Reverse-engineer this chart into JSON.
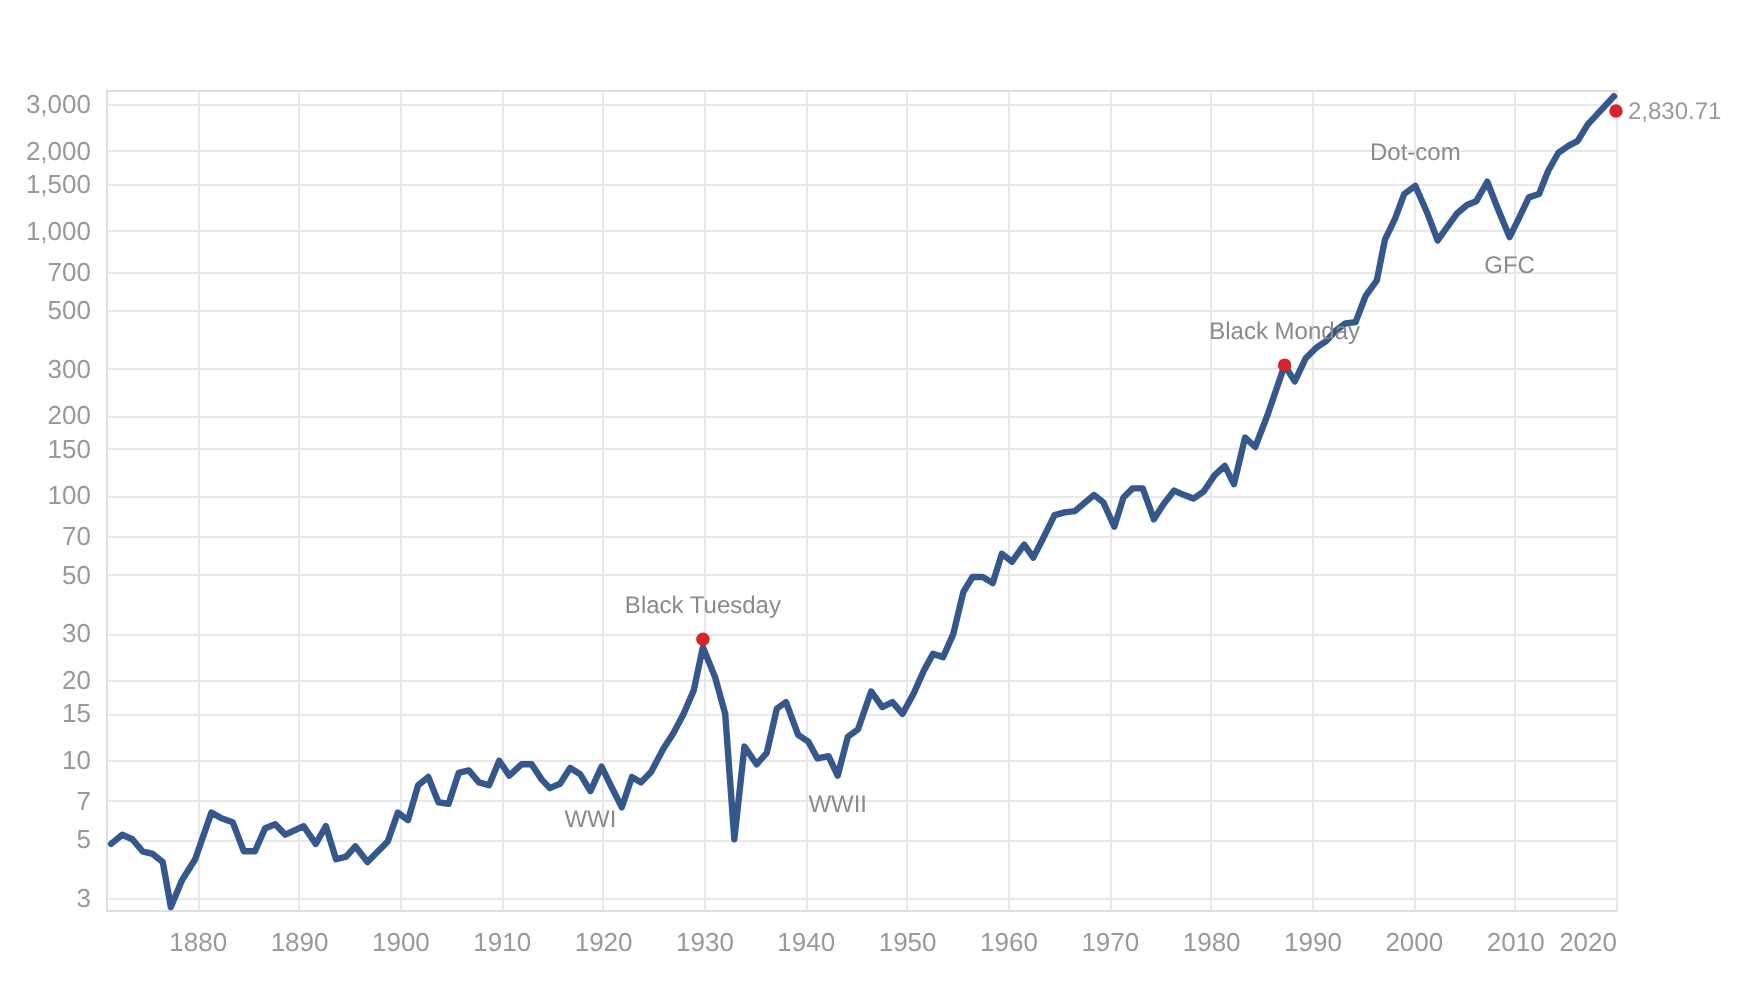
{
  "chart_data": {
    "type": "line",
    "xlim": [
      1871,
      2020
    ],
    "xticks": [
      1880,
      1890,
      1900,
      1910,
      1920,
      1930,
      1940,
      1950,
      1960,
      1970,
      1980,
      1990,
      2000,
      2010,
      2020
    ],
    "ylim": [
      2.7,
      3400
    ],
    "yticks": [
      3,
      5,
      7,
      10,
      15,
      20,
      30,
      50,
      70,
      100,
      150,
      200,
      300,
      500,
      700,
      {
        "value": 1000,
        "label": "1,000"
      },
      {
        "value": 1500,
        "label": "1,500"
      },
      {
        "value": 2000,
        "label": "2,000"
      },
      {
        "value": 3000,
        "label": "3,000"
      }
    ],
    "log": true,
    "grid": true,
    "series": [
      {
        "color": "#35588c",
        "marker": "none",
        "x": [
          1871.5,
          1872.6,
          1873.6,
          1874.6,
          1875.6,
          1876.6,
          1877.4,
          1878.5,
          1879.8,
          1881.4,
          1882.4,
          1883.5,
          1884.6,
          1885.7,
          1886.7,
          1887.7,
          1888.7,
          1890.5,
          1891.7,
          1892.7,
          1893.7,
          1894.7,
          1895.6,
          1896.8,
          1898.8,
          1899.8,
          1900.8,
          1901.8,
          1902.8,
          1903.8,
          1904.8,
          1905.8,
          1906.8,
          1907.8,
          1908.8,
          1909.8,
          1910.8,
          1912,
          1913,
          1914,
          1914.8,
          1915.8,
          1916.8,
          1917.8,
          1918.8,
          1919.9,
          1920.8,
          1921.9,
          1922.9,
          1923.8,
          1924.8,
          1926,
          1927,
          1928,
          1929,
          1929.9,
          1931.1,
          1932.1,
          1933,
          1934,
          1935.2,
          1936.2,
          1937.2,
          1938.1,
          1939.3,
          1940.3,
          1941.2,
          1942.3,
          1943.2,
          1944.2,
          1945.2,
          1946.5,
          1947.6,
          1948.6,
          1949.6,
          1950.7,
          1951.7,
          1952.6,
          1953.6,
          1954.6,
          1955.6,
          1956.5,
          1957.5,
          1958.5,
          1959.4,
          1960.4,
          1961.6,
          1962.5,
          1963.5,
          1964.6,
          1965.6,
          1966.6,
          1967.5,
          1968.5,
          1969.4,
          1970.5,
          1971.4,
          1972.3,
          1973.3,
          1974.4,
          1975.4,
          1976.4,
          1977.4,
          1978.3,
          1979.3,
          1980.4,
          1981.4,
          1982.3,
          1983.4,
          1984.4,
          1985.6,
          1987.3,
          1988.3,
          1989.4,
          1990.4,
          1991.4,
          1992.3,
          1993.3,
          1994.3,
          1995.3,
          1996.4,
          1997.2,
          1998.2,
          1999.1,
          2000.2,
          2001.4,
          2002.4,
          2003.3,
          2004.3,
          2005.3,
          2006.2,
          2007.3,
          2008.3,
          2009.5,
          2010.4,
          2011.4,
          2012.4,
          2013.3,
          2014.3,
          2015.3,
          2016.2,
          2017.2,
          2018.2,
          2019.8
        ],
        "values": [
          4.8,
          5.2,
          5.0,
          4.5,
          4.4,
          4.1,
          2.77,
          3.5,
          4.2,
          6.3,
          6.0,
          5.8,
          4.5,
          4.5,
          5.5,
          5.7,
          5.2,
          5.6,
          4.8,
          5.6,
          4.2,
          4.3,
          4.7,
          4.1,
          4.9,
          6.3,
          5.9,
          8.0,
          8.6,
          6.9,
          6.8,
          8.9,
          9.1,
          8.2,
          8.0,
          9.9,
          8.7,
          9.6,
          9.6,
          8.4,
          7.8,
          8.1,
          9.3,
          8.8,
          7.6,
          9.4,
          8.0,
          6.6,
          8.6,
          8.2,
          9.0,
          11.0,
          12.6,
          14.9,
          18.3,
          26.6,
          20.5,
          14.9,
          5.0,
          11.2,
          9.6,
          10.6,
          15.6,
          16.5,
          12.4,
          11.7,
          10.1,
          10.3,
          8.7,
          12.2,
          13.0,
          18.1,
          15.8,
          16.5,
          14.9,
          17.8,
          21.7,
          25.1,
          24.4,
          29.8,
          43,
          49,
          49,
          46.5,
          60,
          56,
          65,
          58,
          69,
          84,
          86,
          87,
          93,
          100,
          94,
          76,
          98,
          106,
          106,
          81,
          93,
          104,
          100,
          97,
          103,
          119,
          129,
          110,
          165,
          152,
          200,
          310,
          269,
          330,
          360,
          382,
          417,
          446,
          451,
          567,
          648,
          925,
          1110,
          1375,
          1475,
          1160,
          918,
          1025,
          1160,
          1250,
          1290,
          1530,
          1220,
          945,
          1110,
          1335,
          1375,
          1680,
          1965,
          2090,
          2180,
          2515,
          2770,
          3220
        ]
      },
      {
        "type": "scatter",
        "color": "#d7232d",
        "marker": "circle",
        "x": [
          1929.9,
          1987.3,
          2020
        ],
        "values": [
          28.5,
          310,
          2830.71
        ],
        "value_labels": [
          null,
          null,
          "2,830.71"
        ]
      }
    ],
    "annotations": [
      {
        "text": "Black Tuesday",
        "x": 1929.9,
        "y": 28.5
      },
      {
        "text": "WWI",
        "x": 1918.8,
        "y": 7.6
      },
      {
        "text": "WWII",
        "x": 1943.2,
        "y": 8.7
      },
      {
        "text": "Black Monday",
        "x": 1987.3,
        "y": 310
      },
      {
        "text": "Dot-com",
        "x": 2000.2,
        "y": 1475
      },
      {
        "text": "GFC",
        "x": 2009.5,
        "y": 945
      }
    ]
  }
}
